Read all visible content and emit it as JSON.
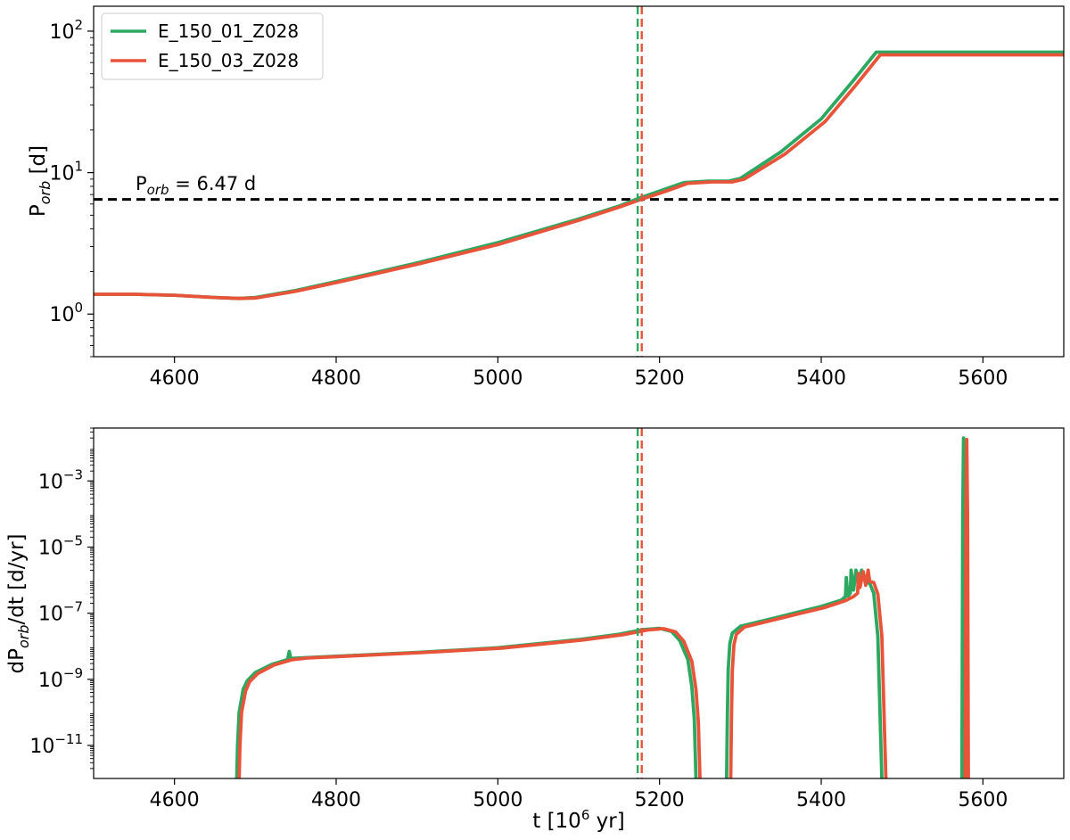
{
  "colors": {
    "series1": "#2ca860",
    "series2": "#e8543a",
    "ref": "#000000"
  },
  "chart_data": [
    {
      "type": "line",
      "ylabel": "P",
      "ylabel_sub": "orb",
      "ylabel_rest": " [d]",
      "yscale": "log",
      "xlim": [
        4500,
        5700
      ],
      "ylim": [
        0.5,
        150
      ],
      "grid": false,
      "legend": "top-left",
      "xticks": [
        "4600",
        "4800",
        "5000",
        "5200",
        "5400",
        "5600"
      ],
      "yticks": [
        {
          "value": 1,
          "base": "10",
          "exp": "0"
        },
        {
          "value": 10,
          "base": "10",
          "exp": "1"
        },
        {
          "value": 100,
          "base": "10",
          "exp": "2"
        }
      ],
      "hline": {
        "y": 6.47,
        "label_main": "P",
        "label_sub": "orb",
        "label_rest": " = 6.47 d"
      },
      "vlines": [
        {
          "x": 5173,
          "series": 0
        },
        {
          "x": 5178,
          "series": 1
        }
      ],
      "series": [
        {
          "name": "E_150_01_Z028",
          "x": [
            4500,
            4550,
            4600,
            4650,
            4680,
            4700,
            4750,
            4800,
            4900,
            5000,
            5100,
            5150,
            5175,
            5200,
            5230,
            5260,
            5285,
            5300,
            5350,
            5400,
            5440,
            5468,
            5500,
            5600,
            5700
          ],
          "y": [
            1.38,
            1.38,
            1.36,
            1.31,
            1.29,
            1.31,
            1.47,
            1.7,
            2.3,
            3.2,
            4.7,
            5.8,
            6.6,
            7.4,
            8.5,
            8.7,
            8.7,
            9.1,
            14.0,
            24.0,
            45.0,
            71.0,
            71.0,
            71.0,
            71.0
          ]
        },
        {
          "name": "E_150_03_Z028",
          "x": [
            4500,
            4550,
            4600,
            4650,
            4680,
            4700,
            4750,
            4800,
            4900,
            5000,
            5100,
            5150,
            5178,
            5205,
            5235,
            5265,
            5290,
            5305,
            5355,
            5405,
            5445,
            5473,
            5500,
            5600,
            5700
          ],
          "y": [
            1.38,
            1.38,
            1.36,
            1.31,
            1.29,
            1.3,
            1.45,
            1.67,
            2.25,
            3.1,
            4.6,
            5.7,
            6.5,
            7.3,
            8.4,
            8.6,
            8.6,
            9.0,
            13.5,
            23.0,
            43.0,
            68.0,
            68.0,
            68.0,
            68.0
          ]
        }
      ]
    },
    {
      "type": "line",
      "ylabel": "dP",
      "ylabel_sub": "orb",
      "ylabel_rest": "/dt [d/yr]",
      "xlabel_main": "t [10",
      "xlabel_sup": "6",
      "xlabel_rest": " yr]",
      "yscale": "log",
      "xlim": [
        4500,
        5700
      ],
      "ylim": [
        1e-12,
        0.04
      ],
      "grid": false,
      "xticks": [
        "4600",
        "4800",
        "5000",
        "5200",
        "5400",
        "5600"
      ],
      "yticks": [
        {
          "value": 1e-11,
          "base": "10",
          "exp": "−11"
        },
        {
          "value": 1e-09,
          "base": "10",
          "exp": "−9"
        },
        {
          "value": 1e-07,
          "base": "10",
          "exp": "−7"
        },
        {
          "value": 1e-05,
          "base": "10",
          "exp": "−5"
        },
        {
          "value": 0.001,
          "base": "10",
          "exp": "−3"
        }
      ],
      "vlines": [
        {
          "x": 5173,
          "series": 0
        },
        {
          "x": 5178,
          "series": 1
        }
      ],
      "series": [
        {
          "name": "E_150_01_Z028",
          "segments": [
            {
              "x": [
                4677,
                4678,
                4680,
                4685,
                4690,
                4700,
                4720,
                4740,
                4742,
                4744,
                4746,
                4760,
                4800,
                4900,
                5000,
                5100,
                5150,
                5180,
                5200,
                5215,
                5225,
                5235,
                5240,
                5243,
                5245
              ],
              "y": [
                1e-12,
                1e-11,
                1e-10,
                5e-10,
                9e-10,
                1.6e-09,
                2.8e-09,
                4e-09,
                7e-09,
                4.2e-09,
                4.3e-09,
                4.5e-09,
                5e-09,
                6.5e-09,
                9e-09,
                1.6e-08,
                2.3e-08,
                3.2e-08,
                3.5e-08,
                2.8e-08,
                1.5e-08,
                4e-09,
                6e-10,
                6e-11,
                1e-12
              ]
            },
            {
              "x": [
                5283,
                5284,
                5285,
                5287,
                5290,
                5300,
                5350,
                5400,
                5425,
                5430,
                5431,
                5433,
                5436,
                5437,
                5440,
                5443,
                5446,
                5450,
                5455,
                5460,
                5465,
                5470,
                5475
              ],
              "y": [
                1e-12,
                1e-10,
                2e-09,
                1.2e-08,
                2.5e-08,
                4e-08,
                8e-08,
                1.6e-07,
                2.5e-07,
                3.2e-07,
                1.2e-06,
                3.3e-07,
                4e-07,
                2e-06,
                5e-07,
                2e-06,
                7e-07,
                2e-06,
                9e-07,
                8e-07,
                4e-07,
                2e-08,
                1e-12
              ]
            },
            {
              "x": [
                5574,
                5575,
                5576,
                5577,
                5578
              ],
              "y": [
                1e-12,
                0.0001,
                0.02,
                0.0001,
                1e-12
              ]
            }
          ]
        },
        {
          "name": "E_150_03_Z028",
          "segments": [
            {
              "x": [
                4680,
                4681,
                4683,
                4688,
                4693,
                4703,
                4723,
                4745,
                4765,
                4805,
                4905,
                5005,
                5105,
                5155,
                5185,
                5205,
                5220,
                5230,
                5240,
                5245,
                5248,
                5250
              ],
              "y": [
                1e-12,
                1e-11,
                1e-10,
                4.5e-10,
                8.5e-10,
                1.5e-09,
                2.7e-09,
                3.9e-09,
                4.4e-09,
                4.9e-09,
                6.4e-09,
                8.8e-09,
                1.55e-08,
                2.25e-08,
                3.1e-08,
                3.4e-08,
                2.7e-08,
                1.4e-08,
                3.5e-09,
                5e-10,
                5e-11,
                1e-12
              ]
            },
            {
              "x": [
                5288,
                5289,
                5290,
                5292,
                5295,
                5305,
                5355,
                5405,
                5430,
                5440,
                5445,
                5446,
                5448,
                5452,
                5455,
                5458,
                5460,
                5465,
                5470,
                5475,
                5480
              ],
              "y": [
                1e-12,
                1e-10,
                1.8e-09,
                1.1e-08,
                2.3e-08,
                3.8e-08,
                7.6e-08,
                1.5e-07,
                2.4e-07,
                3.2e-07,
                4e-07,
                1.6e-06,
                6e-07,
                1.8e-06,
                7e-07,
                2e-06,
                9e-07,
                8.5e-07,
                3.8e-07,
                2e-08,
                1e-12
              ]
            },
            {
              "x": [
                5578,
                5579,
                5580,
                5581,
                5582
              ],
              "y": [
                1e-12,
                0.0001,
                0.018,
                0.0001,
                1e-12
              ]
            }
          ]
        }
      ]
    }
  ]
}
